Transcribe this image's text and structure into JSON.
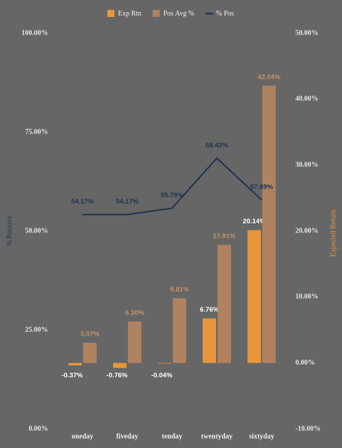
{
  "chart_data": {
    "type": "bar-line",
    "categories": [
      "oneday",
      "fiveday",
      "tenday",
      "twentyday",
      "sixtyday"
    ],
    "y_label": "% Positive",
    "y2_label": "Expected Return",
    "ylim": [
      0,
      100
    ],
    "yticks": [
      {
        "value": 0,
        "label": "0.00%"
      },
      {
        "value": 25,
        "label": "25.00%"
      },
      {
        "value": 50,
        "label": "50.00%"
      },
      {
        "value": 75,
        "label": "75.00%"
      },
      {
        "value": 100,
        "label": "100.00%"
      }
    ],
    "y2lim": [
      -10,
      50
    ],
    "y2ticks": [
      {
        "value": -10,
        "label": "-10.00%"
      },
      {
        "value": 0,
        "label": "0.00%"
      },
      {
        "value": 10,
        "label": "10.00%"
      },
      {
        "value": 20,
        "label": "20.00%"
      },
      {
        "value": 30,
        "label": "30.00%"
      },
      {
        "value": 40,
        "label": "40.00%"
      },
      {
        "value": 50,
        "label": "50.00%"
      }
    ],
    "series": [
      {
        "name": "Exp Rtn",
        "type": "bar",
        "axis": "y2",
        "color": "#e8963a",
        "label_color": "#ffffff",
        "values": [
          -0.37,
          -0.76,
          -0.04,
          6.76,
          20.14
        ],
        "value_labels": [
          "-0.37%",
          "-0.76%",
          "-0.04%",
          "6.76%",
          "20.14%"
        ]
      },
      {
        "name": "Pos Avg %",
        "type": "bar",
        "axis": "y2",
        "color": "#b08260",
        "label_color": "#c4926a",
        "values": [
          3.07,
          6.3,
          9.81,
          17.91,
          42.04
        ],
        "value_labels": [
          "3.07%",
          "6.30%",
          "9.81%",
          "17.91%",
          "42.04%"
        ]
      },
      {
        "name": "% Pos",
        "type": "line",
        "axis": "y",
        "color": "#1b3550",
        "label_color": "#1b3550",
        "values": [
          54.17,
          54.17,
          55.79,
          68.42,
          57.89
        ],
        "value_labels": [
          "54.17%",
          "54.17%",
          "55.79%",
          "68.42%",
          "57.89%"
        ]
      }
    ]
  }
}
